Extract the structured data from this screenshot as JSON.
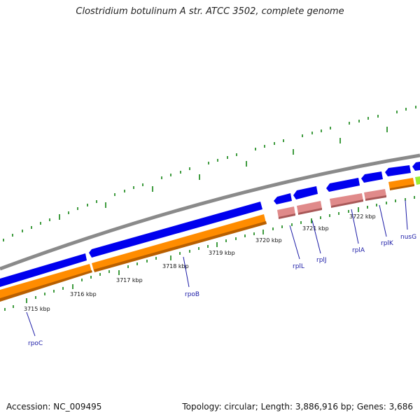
{
  "title": "Clostridium botulinum A str. ATCC 3502, complete genome",
  "accession": "Accession: NC_009495",
  "summary": "Topology: circular; Length: 3,886,916 bp; Genes: 3,686",
  "scale_labels": [
    "3715 kbp",
    "3716 kbp",
    "3717 kbp",
    "3718 kbp",
    "3719 kbp",
    "3720 kbp",
    "3721 kbp",
    "3722 kbp"
  ],
  "gene_labels": [
    "rpoC",
    "rpoB",
    "rplL",
    "rplJ",
    "rplA",
    "rplK",
    "nusG"
  ],
  "colors": {
    "backbone": "#8a8a8a",
    "cds_forward": "#0000ee",
    "gene_forward": "#ff8c00",
    "rrna_like": "#e08a8a",
    "accent_gene": "#99ee33",
    "tick": "#007a00",
    "label": "#1a1aa6"
  }
}
